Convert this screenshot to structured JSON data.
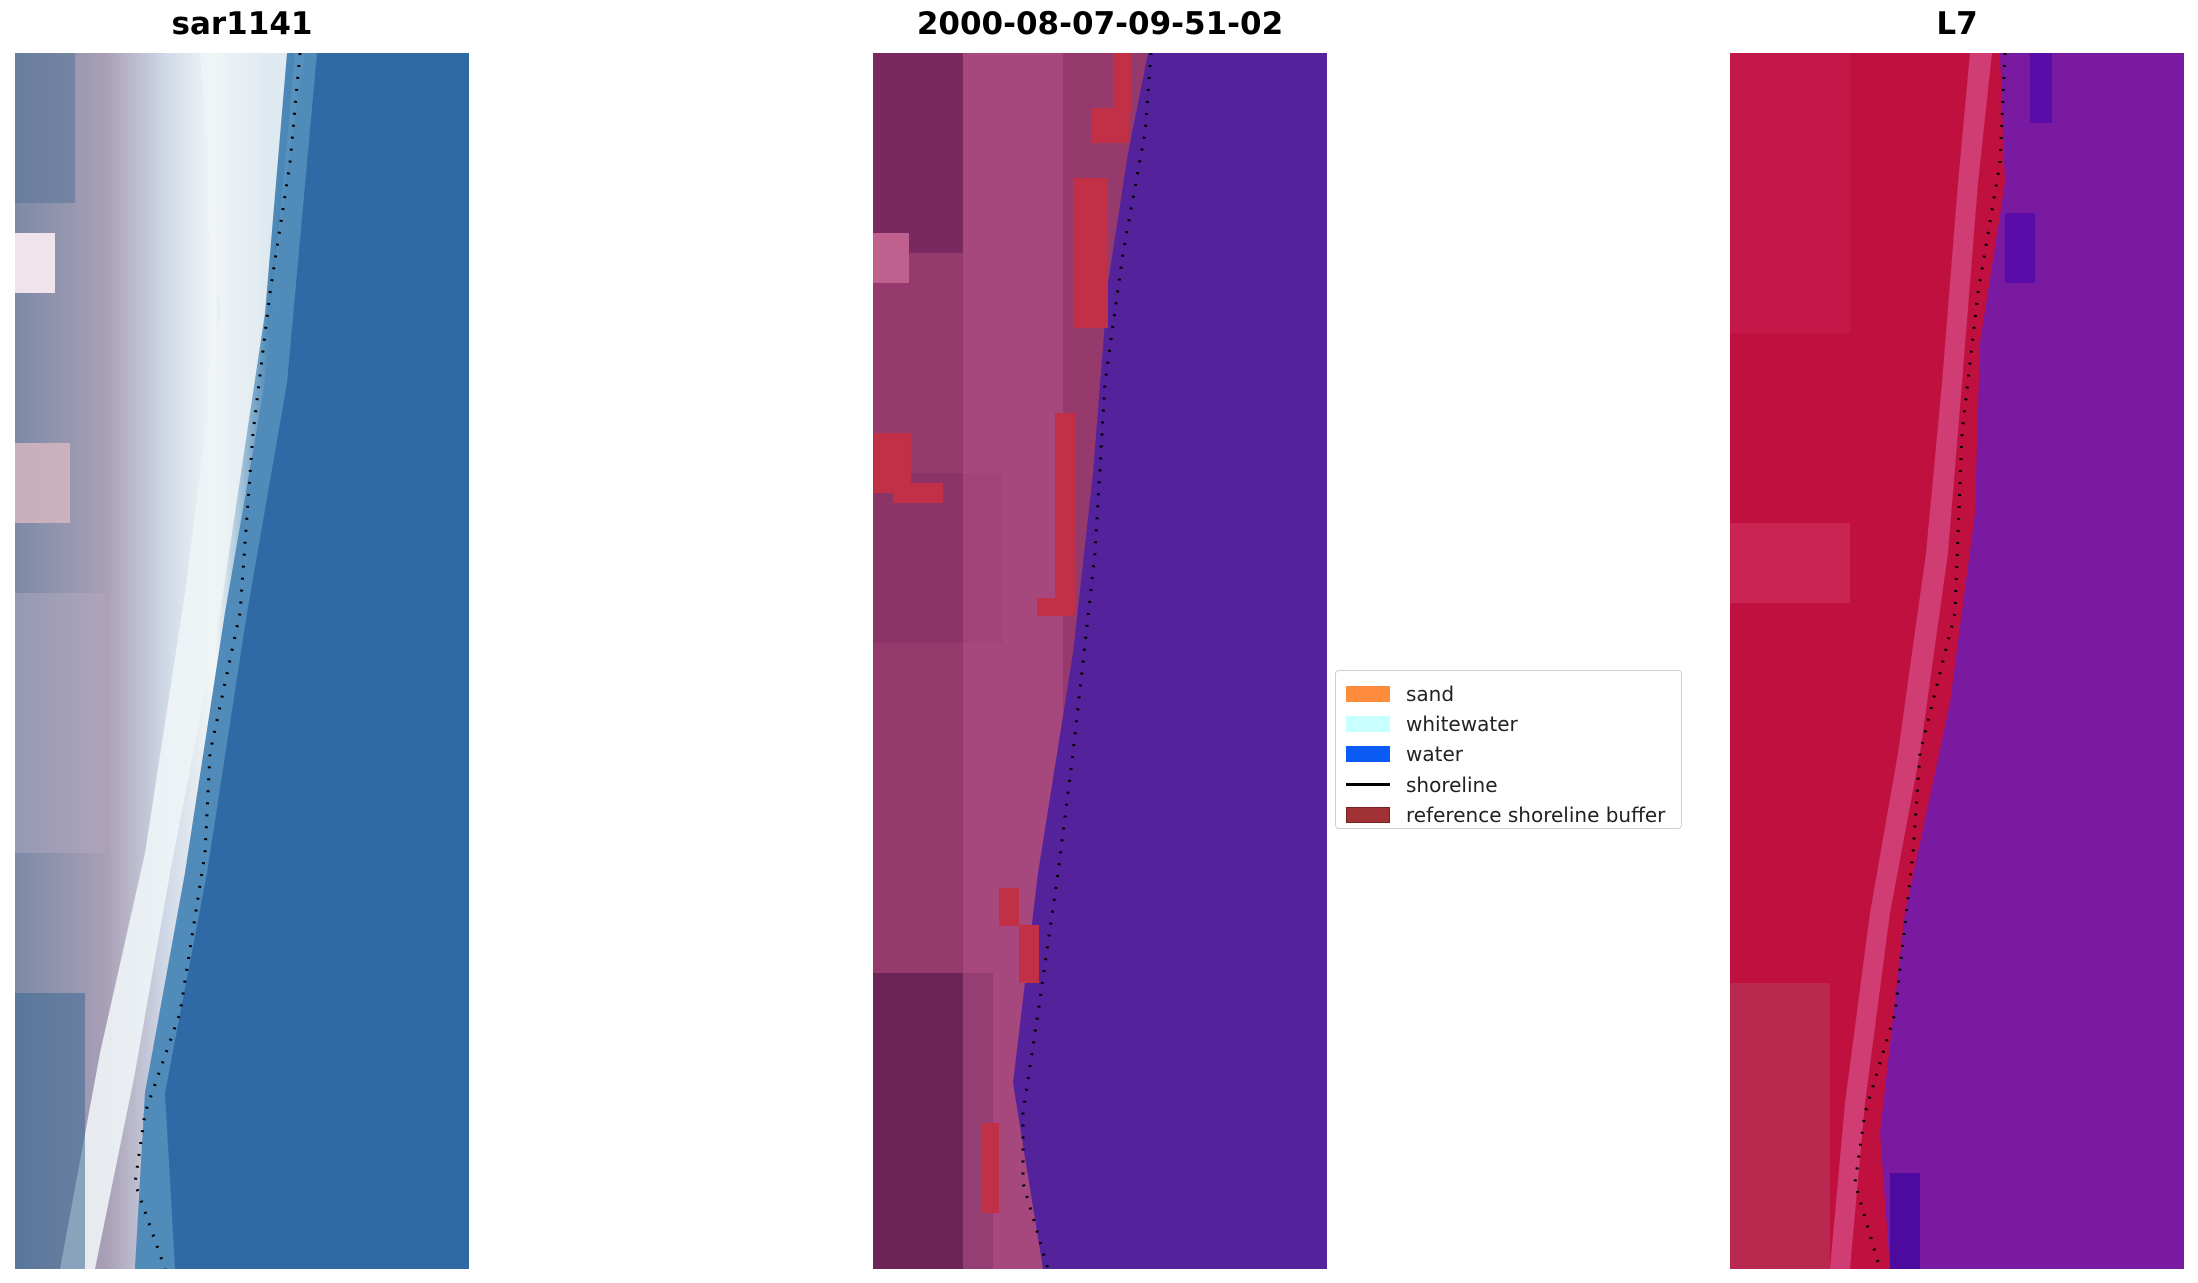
{
  "panels": [
    {
      "id": "rgb",
      "title": "sar1141"
    },
    {
      "id": "classified",
      "title": "2000-08-07-09-51-02"
    },
    {
      "id": "mndwi",
      "title": "L7"
    }
  ],
  "legend": {
    "items": [
      {
        "label": "sand",
        "color": "#ff8c3c",
        "kind": "patch"
      },
      {
        "label": "whitewater",
        "color": "#c8ffff",
        "kind": "patch"
      },
      {
        "label": "water",
        "color": "#0a5cf5",
        "kind": "patch"
      },
      {
        "label": "shoreline",
        "color": "#000000",
        "kind": "line"
      },
      {
        "label": "reference shoreline buffer",
        "color": "#a03236",
        "kind": "patch"
      }
    ]
  },
  "colors": {
    "ocean_blue": "#2e6aa8",
    "whitewater": "#e6eef4",
    "beach_mauve": "#9c8ca6",
    "classified_land": "#963a6e",
    "classified_water": "#54229a",
    "buffer_red": "#c23048",
    "mndwi_land": "#c01040",
    "mndwi_water": "#7a1aa0"
  }
}
